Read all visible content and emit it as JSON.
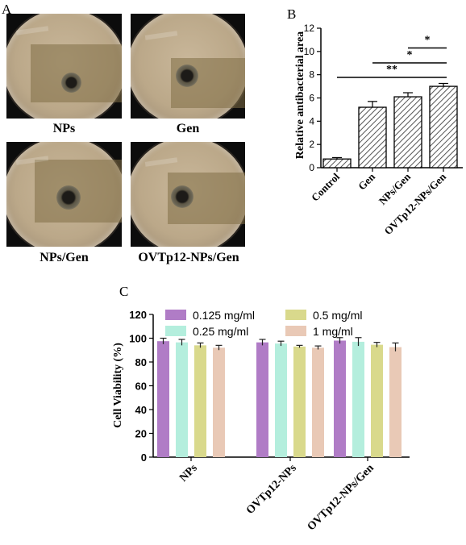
{
  "panels": {
    "a_letter": "A",
    "b_letter": "B",
    "c_letter": "C"
  },
  "plates": [
    {
      "label": "NPs"
    },
    {
      "label": "Gen"
    },
    {
      "label": "NPs/Gen"
    },
    {
      "label": "OVTp12-NPs/Gen"
    }
  ],
  "chart_data": [
    {
      "type": "bar",
      "panel": "B",
      "ylabel": "Relative antibacterial area",
      "xlabel": "",
      "ylim": [
        0,
        12
      ],
      "yticks": [
        0,
        2,
        4,
        6,
        8,
        10,
        12
      ],
      "categories": [
        "Control",
        "Gen",
        "NPs/Gen",
        "OVTp12-NPs/Gen"
      ],
      "values": [
        0.75,
        5.2,
        6.1,
        7.0
      ],
      "errors": [
        0.12,
        0.5,
        0.35,
        0.25
      ],
      "fill": "diagonal hatch",
      "significance": [
        {
          "from": "NPs/Gen",
          "to": "OVTp12-NPs/Gen",
          "label": "*"
        },
        {
          "from": "Gen",
          "to": "OVTp12-NPs/Gen",
          "label": "*"
        },
        {
          "from": "Control",
          "to": "OVTp12-NPs/Gen",
          "label": "**"
        }
      ]
    },
    {
      "type": "bar",
      "panel": "C",
      "ylabel": "Cell Viability (%)",
      "xlabel": "",
      "ylim": [
        0,
        120
      ],
      "yticks": [
        0,
        20,
        40,
        60,
        80,
        100,
        120
      ],
      "categories": [
        "NPs",
        "OVTp12-NPs",
        "OVTp12-NPs/Gen"
      ],
      "series": [
        {
          "name": "0.125 mg/ml",
          "color": "#b07cc6",
          "values": [
            97.5,
            96.5,
            98.0
          ],
          "errors": [
            2.5,
            2.5,
            2.5
          ]
        },
        {
          "name": "0.25 mg/ml",
          "color": "#b4eedd",
          "values": [
            96.5,
            95.5,
            97.0
          ],
          "errors": [
            2.5,
            2.0,
            3.5
          ]
        },
        {
          "name": "0.5 mg/ml",
          "color": "#d9d98c",
          "values": [
            94.0,
            93.0,
            94.5
          ],
          "errors": [
            2.0,
            1.0,
            2.0
          ]
        },
        {
          "name": "1 mg/ml",
          "color": "#e9c9b6",
          "values": [
            92.0,
            92.0,
            92.5
          ],
          "errors": [
            2.0,
            1.5,
            3.5
          ]
        }
      ],
      "legend": "top, two columns"
    }
  ]
}
